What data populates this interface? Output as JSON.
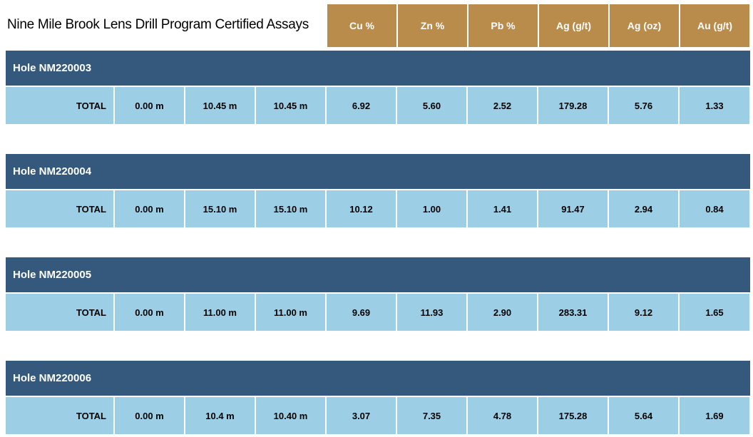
{
  "title": "Nine Mile Brook Lens Drill Program Certified Assays",
  "columns": [
    "Cu %",
    "Zn %",
    "Pb %",
    "Ag (g/t)",
    "Ag (oz)",
    "Au (g/t)"
  ],
  "colors": {
    "header": "#b98c4c",
    "hole": "#34597c",
    "row": "#9ccfe6"
  },
  "holes": [
    {
      "name": "Hole NM220003",
      "label": "TOTAL",
      "from": "0.00 m",
      "to": "10.45 m",
      "length": "10.45 m",
      "cu": "6.92",
      "zn": "5.60",
      "pb": "2.52",
      "ag_gt": "179.28",
      "ag_oz": "5.76",
      "au": "1.33"
    },
    {
      "name": "Hole NM220004",
      "label": "TOTAL",
      "from": "0.00 m",
      "to": "15.10 m",
      "length": "15.10 m",
      "cu": "10.12",
      "zn": "1.00",
      "pb": "1.41",
      "ag_gt": "91.47",
      "ag_oz": "2.94",
      "au": "0.84"
    },
    {
      "name": "Hole NM220005",
      "label": "TOTAL",
      "from": "0.00 m",
      "to": "11.00 m",
      "length": "11.00 m",
      "cu": "9.69",
      "zn": "11.93",
      "pb": "2.90",
      "ag_gt": "283.31",
      "ag_oz": "9.12",
      "au": "1.65"
    },
    {
      "name": "Hole NM220006",
      "label": "TOTAL",
      "from": "0.00 m",
      "to": "10.4 m",
      "length": "10.40 m",
      "cu": "3.07",
      "zn": "7.35",
      "pb": "4.78",
      "ag_gt": "175.28",
      "ag_oz": "5.64",
      "au": "1.69"
    }
  ]
}
